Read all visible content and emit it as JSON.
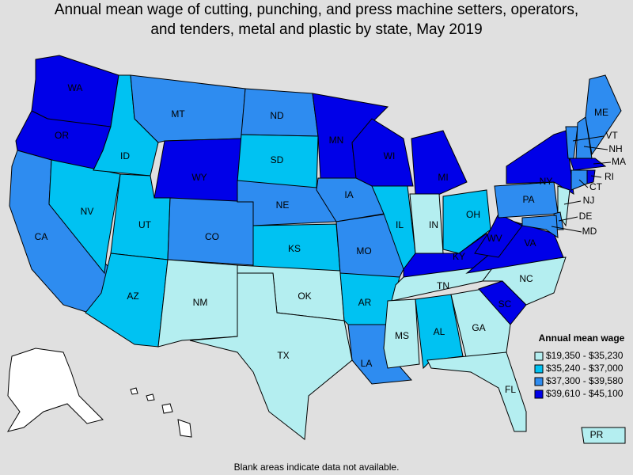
{
  "title": [
    "Annual mean wage of cutting, punching, and press machine setters, operators,",
    "and tenders, metal and plastic by state, May 2019"
  ],
  "legend": {
    "title": "Annual mean wage",
    "classes": [
      {
        "label": "$19,350 - $35,230",
        "color": "#b4eef0"
      },
      {
        "label": "$35,240 - $37,000",
        "color": "#00c2f2"
      },
      {
        "label": "$37,300 - $39,580",
        "color": "#2e8cf0"
      },
      {
        "label": "$39,610 - $45,100",
        "color": "#0000e8"
      }
    ]
  },
  "states": [
    {
      "label": "WA",
      "class": 3
    },
    {
      "label": "OR",
      "class": 3
    },
    {
      "label": "CA",
      "class": 2
    },
    {
      "label": "NV",
      "class": 1
    },
    {
      "label": "ID",
      "class": 1
    },
    {
      "label": "MT",
      "class": 2
    },
    {
      "label": "WY",
      "class": 3
    },
    {
      "label": "UT",
      "class": 1
    },
    {
      "label": "AZ",
      "class": 1
    },
    {
      "label": "CO",
      "class": 2
    },
    {
      "label": "NM",
      "class": 0
    },
    {
      "label": "ND",
      "class": 2
    },
    {
      "label": "SD",
      "class": 1
    },
    {
      "label": "NE",
      "class": 2
    },
    {
      "label": "KS",
      "class": 1
    },
    {
      "label": "OK",
      "class": 0
    },
    {
      "label": "TX",
      "class": 0
    },
    {
      "label": "MN",
      "class": 3
    },
    {
      "label": "IA",
      "class": 2
    },
    {
      "label": "MO",
      "class": 2
    },
    {
      "label": "AR",
      "class": 1
    },
    {
      "label": "LA",
      "class": 2
    },
    {
      "label": "WI",
      "class": 3
    },
    {
      "label": "IL",
      "class": 1
    },
    {
      "label": "MI",
      "class": 3
    },
    {
      "label": "IN",
      "class": 0
    },
    {
      "label": "OH",
      "class": 1
    },
    {
      "label": "KY",
      "class": 3
    },
    {
      "label": "TN",
      "class": 0
    },
    {
      "label": "MS",
      "class": 0
    },
    {
      "label": "AL",
      "class": 1
    },
    {
      "label": "GA",
      "class": 0
    },
    {
      "label": "FL",
      "class": 0
    },
    {
      "label": "SC",
      "class": 3
    },
    {
      "label": "NC",
      "class": 0
    },
    {
      "label": "VA",
      "class": 3
    },
    {
      "label": "WV",
      "class": 3
    },
    {
      "label": "PA",
      "class": 2
    },
    {
      "label": "NY",
      "class": 3
    },
    {
      "label": "VT",
      "class": 2
    },
    {
      "label": "NH",
      "class": 2
    },
    {
      "label": "ME",
      "class": 2
    },
    {
      "label": "MA",
      "class": 3
    },
    {
      "label": "CT",
      "class": 2
    },
    {
      "label": "RI",
      "class": 3
    },
    {
      "label": "NJ",
      "class": 0
    },
    {
      "label": "DE",
      "class": 2
    },
    {
      "label": "MD",
      "class": 2
    },
    {
      "label": "PR",
      "class": 0
    }
  ],
  "footnote": "Blank areas indicate data not available."
}
